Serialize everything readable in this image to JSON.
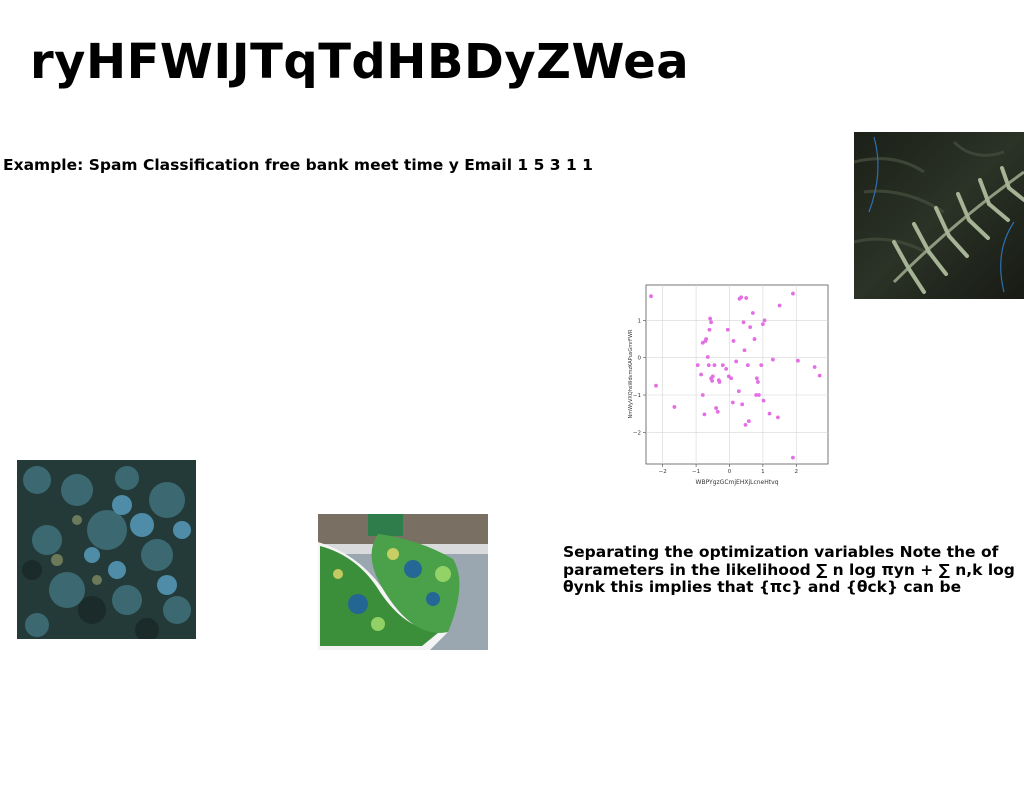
{
  "slide": {
    "title": "ryHFWIJTqTdHBDyZWea",
    "subtitle": "Example: Spam Classification free bank meet time y Email 1 5 3 1 1",
    "paragraph": "Separating the optimization variables Note the of parameters in the likelihood ∑ n log πyn + ∑ n,k log θynk this implies that {πc} and {θck} can be"
  },
  "photos": [
    {
      "name": "fern-leaves-photo"
    },
    {
      "name": "aerial-forest-photo"
    },
    {
      "name": "open-magazine-photo"
    }
  ],
  "chart_data": {
    "type": "scatter",
    "title": "",
    "xlabel": "WBPYgzGCmjEHXjLcneHtvq",
    "ylabel": "NmWyVXQhsWdvmzKAPusGmrFWR",
    "xlim": [
      -2.5,
      2.95
    ],
    "ylim": [
      -2.85,
      1.95
    ],
    "xticks": [
      -2,
      -1,
      0,
      1,
      2
    ],
    "yticks": [
      -2,
      -1,
      0,
      1
    ],
    "grid": true,
    "marker_color": "#e46ee4",
    "x": [
      -2.35,
      -2.2,
      -1.65,
      -0.95,
      -0.85,
      -0.8,
      -0.8,
      -0.75,
      -0.72,
      -0.7,
      -0.65,
      -0.62,
      -0.6,
      -0.58,
      -0.55,
      -0.55,
      -0.52,
      -0.5,
      -0.45,
      -0.4,
      -0.35,
      -0.32,
      -0.3,
      -0.2,
      -0.1,
      -0.05,
      -0.02,
      0.05,
      0.1,
      0.12,
      0.2,
      0.28,
      0.3,
      0.35,
      0.38,
      0.42,
      0.45,
      0.48,
      0.5,
      0.55,
      0.58,
      0.62,
      0.7,
      0.75,
      0.8,
      0.82,
      0.85,
      0.88,
      0.95,
      1.0,
      1.02,
      1.05,
      1.2,
      1.3,
      1.45,
      1.5,
      1.9,
      1.9,
      2.05,
      2.55,
      2.7
    ],
    "y": [
      1.65,
      -0.75,
      -1.32,
      -0.2,
      -0.45,
      -1.0,
      0.4,
      -1.52,
      0.45,
      0.5,
      0.02,
      -0.2,
      0.75,
      1.05,
      -0.55,
      0.95,
      -0.62,
      -0.5,
      -0.2,
      -1.35,
      -1.45,
      -0.6,
      -0.65,
      -0.2,
      -0.3,
      0.75,
      -0.5,
      -0.55,
      -1.2,
      0.45,
      -0.1,
      -0.9,
      1.58,
      1.62,
      -1.25,
      0.95,
      0.2,
      -1.8,
      1.6,
      -0.2,
      -1.7,
      0.82,
      1.2,
      0.5,
      -1.0,
      -0.55,
      -0.65,
      -1.0,
      -0.2,
      0.9,
      -1.15,
      1.0,
      -1.5,
      -0.05,
      -1.6,
      1.4,
      -2.68,
      1.72,
      -0.08,
      -0.25,
      -0.48
    ]
  }
}
